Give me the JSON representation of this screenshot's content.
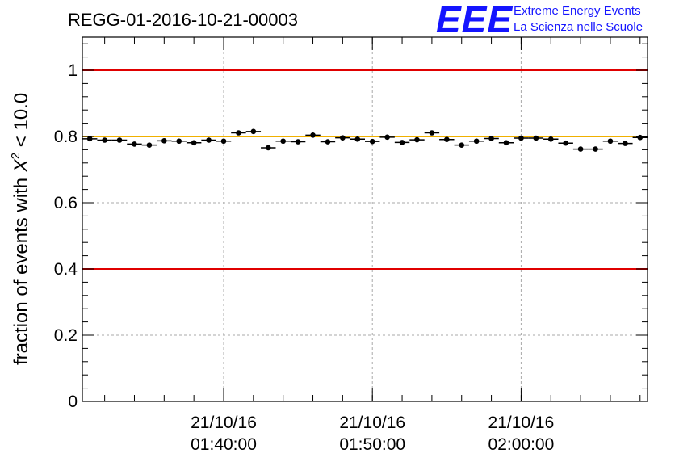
{
  "chart_data": {
    "type": "scatter",
    "title": "REGG-01-2016-10-21-00003",
    "ylabel_main": "fraction of events with ",
    "ylabel_symbol": "X",
    "ylabel_sup": "2",
    "ylabel_tail": " < 10.0",
    "xlabel": "",
    "ylim": [
      0,
      1.1
    ],
    "xlim_minutes": [
      0,
      38
    ],
    "y_ticks": [
      0,
      0.2,
      0.4,
      0.6,
      0.8,
      1
    ],
    "y_tick_labels": [
      "0",
      "0.2",
      "0.4",
      "0.6",
      "0.8",
      "1"
    ],
    "x_ticks": [
      {
        "minutes": 9.5,
        "date": "21/10/16",
        "time": "01:40:00"
      },
      {
        "minutes": 19.5,
        "date": "21/10/16",
        "time": "01:50:00"
      },
      {
        "minutes": 29.5,
        "date": "21/10/16",
        "time": "02:00:00"
      }
    ],
    "x_minor_step_minutes": 2,
    "x_first_minor_minutes": 1.5,
    "reference_lines": [
      {
        "y": 1.0,
        "color": "#e00000"
      },
      {
        "y": 0.4,
        "color": "#e00000"
      },
      {
        "y": 0.8,
        "color": "#f0b000"
      }
    ],
    "bin_width_minutes": 1,
    "x": [
      0.5,
      1.5,
      2.5,
      3.5,
      4.5,
      5.5,
      6.5,
      7.5,
      8.5,
      9.5,
      10.5,
      11.5,
      12.5,
      13.5,
      14.5,
      15.5,
      16.5,
      17.5,
      18.5,
      19.5,
      20.5,
      21.5,
      22.5,
      23.5,
      24.5,
      25.5,
      26.5,
      27.5,
      28.5,
      29.5,
      30.5,
      31.5,
      32.5,
      33.5,
      34.5,
      35.5,
      36.5,
      37.5
    ],
    "values": [
      0.793,
      0.789,
      0.789,
      0.777,
      0.774,
      0.787,
      0.786,
      0.781,
      0.789,
      0.786,
      0.811,
      0.815,
      0.766,
      0.786,
      0.784,
      0.804,
      0.784,
      0.796,
      0.792,
      0.785,
      0.798,
      0.782,
      0.79,
      0.811,
      0.791,
      0.774,
      0.786,
      0.794,
      0.781,
      0.795,
      0.795,
      0.792,
      0.78,
      0.762,
      0.762,
      0.786,
      0.779,
      0.797
    ],
    "errors": [
      0.007,
      0.007,
      0.007,
      0.007,
      0.007,
      0.007,
      0.007,
      0.007,
      0.007,
      0.007,
      0.007,
      0.007,
      0.007,
      0.007,
      0.007,
      0.007,
      0.007,
      0.007,
      0.007,
      0.007,
      0.007,
      0.007,
      0.007,
      0.007,
      0.007,
      0.007,
      0.007,
      0.007,
      0.007,
      0.007,
      0.007,
      0.007,
      0.007,
      0.007,
      0.007,
      0.007,
      0.007,
      0.007
    ],
    "grid": true
  },
  "logo": {
    "mark": "EEE",
    "line1": "Extreme Energy Events",
    "line2": "La Scienza nelle Scuole"
  },
  "colors": {
    "marker": "#000000",
    "red_line": "#e00000",
    "gold_line": "#f0b000",
    "logo": "#1515ff",
    "grid": "#aaaaaa"
  }
}
